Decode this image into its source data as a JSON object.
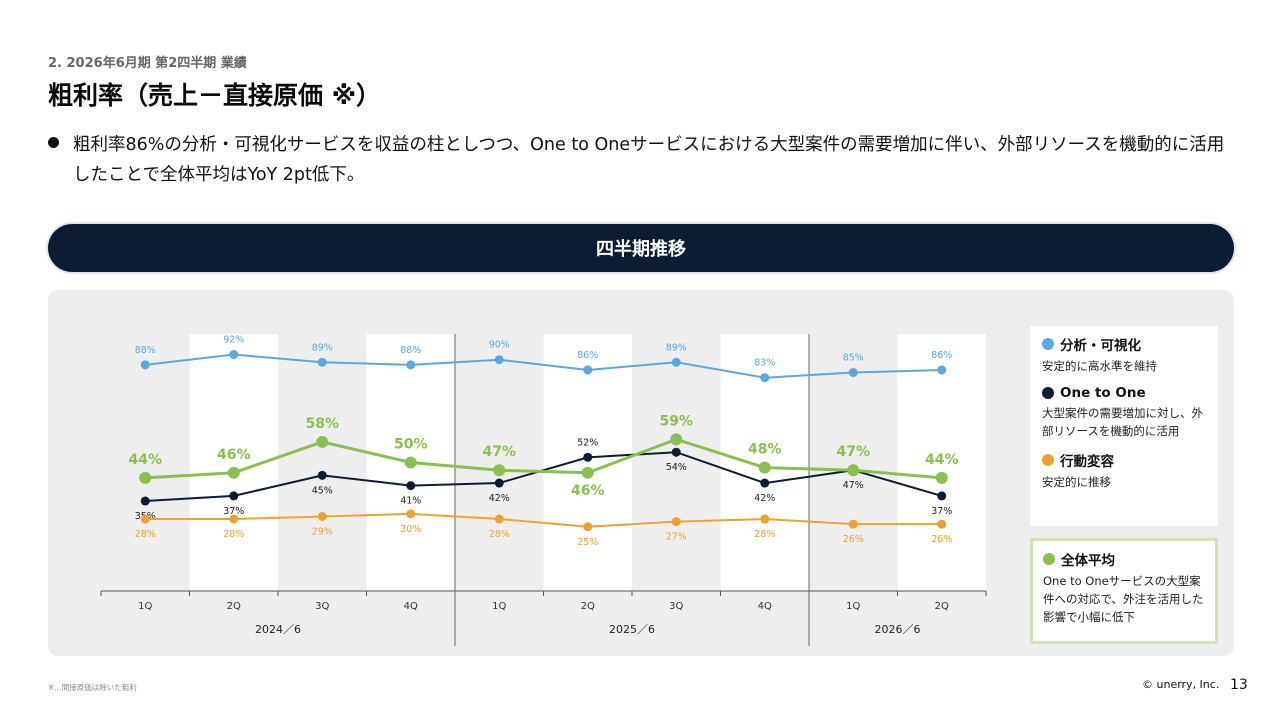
{
  "header": {
    "section_label": "2. 2026年6月期 第2四半期 業績",
    "title": "粗利率（売上－直接原価 ※）",
    "bullet": "粗利率86%の分析・可視化サービスを収益の柱としつつ、One to Oneサービスにおける大型案件の需要増加に伴い、外部リソースを機動的に活用したことで全体平均はYoY 2pt低下。"
  },
  "banner": {
    "label": "四半期推移"
  },
  "chart_data": {
    "type": "line",
    "title": "四半期推移",
    "categories": [
      "1Q",
      "2Q",
      "3Q",
      "4Q",
      "1Q",
      "2Q",
      "3Q",
      "4Q",
      "1Q",
      "2Q"
    ],
    "groups": [
      {
        "label": "2024／6",
        "from": 0,
        "to": 3
      },
      {
        "label": "2025／6",
        "from": 4,
        "to": 7
      },
      {
        "label": "2026／6",
        "from": 8,
        "to": 9
      }
    ],
    "ylim": [
      0,
      100
    ],
    "series": [
      {
        "name": "分析・可視化",
        "color": "#5ba8e0",
        "values": [
          88,
          92,
          89,
          88,
          90,
          86,
          89,
          83,
          85,
          86
        ]
      },
      {
        "name": "One to One",
        "color": "#0d1c33",
        "values": [
          35,
          37,
          45,
          41,
          42,
          52,
          54,
          42,
          47,
          37
        ]
      },
      {
        "name": "行動変容",
        "color": "#f0a030",
        "values": [
          28,
          28,
          29,
          30,
          28,
          25,
          27,
          28,
          26,
          26
        ]
      },
      {
        "name": "全体平均",
        "color": "#8bbf4f",
        "values": [
          44,
          46,
          58,
          50,
          47,
          46,
          59,
          48,
          47,
          44
        ]
      }
    ]
  },
  "legend": [
    {
      "name": "分析・可視化",
      "color": "#5ba8e0",
      "desc": "安定的に高水準を維持"
    },
    {
      "name": "One to One",
      "color": "#0d1c33",
      "desc": "大型案件の需要増加に対し、外部リソースを機動的に活用"
    },
    {
      "name": "行動変容",
      "color": "#f0a030",
      "desc": "安定的に推移"
    },
    {
      "name": "全体平均",
      "color": "#8bbf4f",
      "desc": "One to Oneサービスの大型案件への対応で、外注を活用した影響で小幅に低下"
    }
  ],
  "footer": {
    "footnote": "※…間接原価は除いた粗利",
    "copyright": "© unerry, Inc.",
    "page_number": "13"
  }
}
